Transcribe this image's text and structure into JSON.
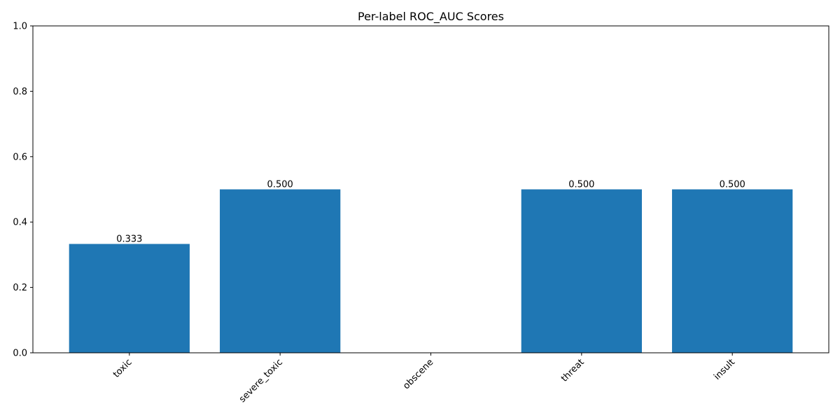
{
  "chart_data": {
    "type": "bar",
    "title": "Per-label ROC_AUC Scores",
    "xlabel": "",
    "ylabel": "",
    "categories": [
      "toxic",
      "severe_toxic",
      "obscene",
      "threat",
      "insult"
    ],
    "values": [
      0.333,
      0.5,
      0,
      0.5,
      0.5
    ],
    "data_labels": [
      "0.333",
      "0.500",
      "",
      "0.500",
      "0.500"
    ],
    "ylim": [
      0,
      1
    ],
    "yticks": [
      0.0,
      0.2,
      0.4,
      0.6,
      0.8,
      1.0
    ],
    "ytick_labels": [
      "0.0",
      "0.2",
      "0.4",
      "0.6",
      "0.8",
      "1.0"
    ],
    "x_tick_rotation_deg": 45,
    "grid": false,
    "legend": "none",
    "bar_color": "#1f77b4"
  }
}
